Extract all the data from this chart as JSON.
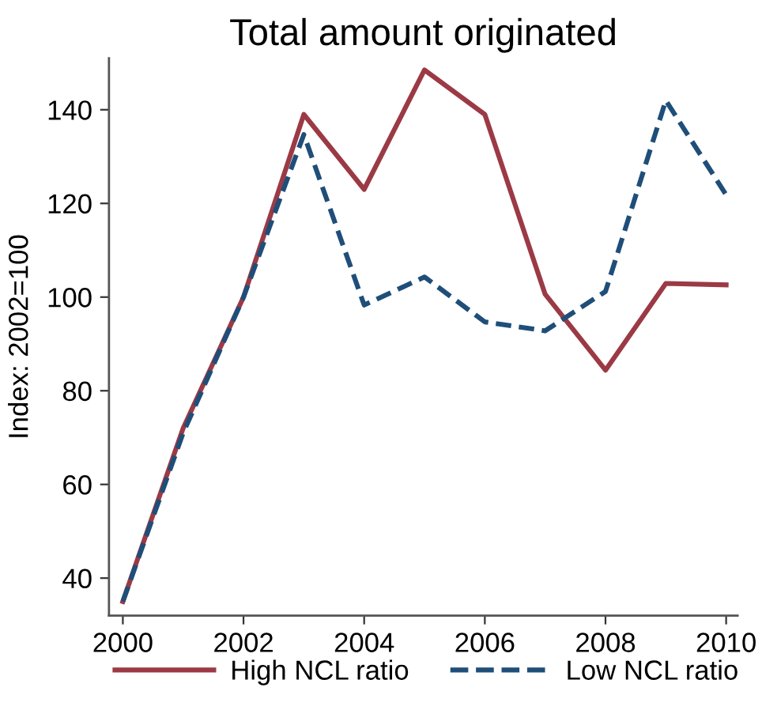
{
  "chart_data": {
    "type": "line",
    "title": "Total amount originated",
    "ylabel": "Index: 2002=100",
    "x": [
      2000,
      2001,
      2002,
      2003,
      2004,
      2005,
      2006,
      2007,
      2008,
      2009,
      2010
    ],
    "series": [
      {
        "name": "High NCL ratio",
        "color": "#9b3a45",
        "line_style": "solid",
        "values": [
          35,
          72,
          100,
          139,
          123,
          148.5,
          139,
          100.6,
          84.4,
          102.9,
          102.6
        ]
      },
      {
        "name": "Low NCL ratio",
        "color": "#1f4e79",
        "line_style": "dashed",
        "values": [
          35,
          71,
          100,
          134.7,
          98.3,
          104.3,
          94.7,
          92.8,
          101.2,
          142,
          121.8
        ]
      }
    ],
    "xlim": [
      1999.77,
      2010.19
    ],
    "xticks": [
      2000,
      2002,
      2004,
      2006,
      2008,
      2010
    ],
    "ylim": [
      32,
      151
    ],
    "yticks": [
      40,
      60,
      80,
      100,
      120,
      140
    ],
    "grid": false,
    "legend": "bottom",
    "marker": "none"
  }
}
